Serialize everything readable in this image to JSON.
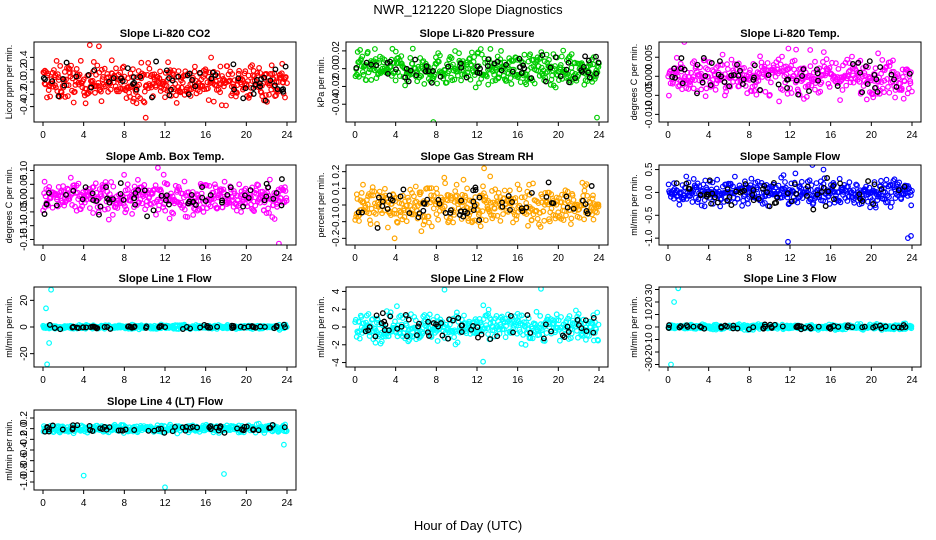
{
  "title": "NWR_121220  Slope Diagnostics",
  "xlabel": "Hour of Day (UTC)",
  "chart_data": [
    {
      "type": "scatter",
      "title": "Slope Li-820 CO2",
      "ylabel": "Licor ppm per min.",
      "xlim": [
        0,
        24
      ],
      "ylim": [
        -0.65,
        0.65
      ],
      "yticks": [
        "-0.4",
        "-0.2",
        "0.0",
        "0.2",
        "0.4"
      ],
      "yvals": [
        -0.4,
        -0.2,
        0,
        0.2,
        0.4
      ],
      "xticks": [
        "0",
        "4",
        "8",
        "12",
        "16",
        "20",
        "24"
      ],
      "color": "#ff0000",
      "series": [
        {
          "values_summary": "dense scatter",
          "spread": 0.3,
          "outliers": [
            [
              4.6,
              0.6
            ],
            [
              5.5,
              0.58
            ],
            [
              10.1,
              -0.58
            ]
          ]
        }
      ]
    },
    {
      "type": "scatter",
      "title": "Slope Li-820 Pressure",
      "ylabel": "kPa per min.",
      "xlim": [
        0,
        24
      ],
      "ylim": [
        -0.06,
        0.03
      ],
      "yticks": [
        "-0.04",
        "-0.02",
        "0.00",
        "0.02"
      ],
      "yvals": [
        -0.04,
        -0.02,
        0,
        0.02
      ],
      "xticks": [
        "0",
        "4",
        "8",
        "12",
        "16",
        "20",
        "24"
      ],
      "color": "#00cc00",
      "series": [
        {
          "spread": 0.018,
          "outliers": [
            [
              7.7,
              -0.06
            ],
            [
              23.8,
              -0.055
            ]
          ]
        }
      ]
    },
    {
      "type": "scatter",
      "title": "Slope Li-820 Temp.",
      "ylabel": "degrees C per min.",
      "xlim": [
        0,
        24
      ],
      "ylim": [
        -0.012,
        0.009
      ],
      "yticks": [
        "-0.010",
        "-0.005",
        "0.000",
        "0.005"
      ],
      "yvals": [
        -0.01,
        -0.005,
        0,
        0.005
      ],
      "xticks": [
        "0",
        "4",
        "8",
        "12",
        "16",
        "20",
        "24"
      ],
      "color": "#ff00ff",
      "series": [
        {
          "spread": 0.005,
          "outliers": [
            [
              1.6,
              0.009
            ],
            [
              12.6,
              0.007
            ]
          ]
        }
      ]
    },
    {
      "type": "scatter",
      "title": "Slope Amb. Box Temp.",
      "ylabel": "degrees C per min.",
      "xlim": [
        0,
        24
      ],
      "ylim": [
        -0.17,
        0.12
      ],
      "yticks": [
        "-0.15",
        "-0.10",
        "-0.05",
        "0.00",
        "0.05",
        "0.10"
      ],
      "yvals": [
        -0.15,
        -0.1,
        -0.05,
        0,
        0.05,
        0.1
      ],
      "xticks": [
        "0",
        "4",
        "8",
        "12",
        "16",
        "20",
        "24"
      ],
      "color": "#ff00ff",
      "series": [
        {
          "spread": 0.06,
          "outliers": [
            [
              23.2,
              -0.165
            ],
            [
              11.3,
              0.11
            ]
          ]
        }
      ]
    },
    {
      "type": "scatter",
      "title": "Slope Gas Stream RH",
      "ylabel": "percent per min.",
      "xlim": [
        0,
        24
      ],
      "ylim": [
        -0.24,
        0.24
      ],
      "yticks": [
        "-0.2",
        "-0.1",
        "0.0",
        "0.1",
        "0.2"
      ],
      "yvals": [
        -0.2,
        -0.1,
        0,
        0.1,
        0.2
      ],
      "xticks": [
        "0",
        "4",
        "8",
        "12",
        "16",
        "20",
        "24"
      ],
      "color": "#ffa500",
      "series": [
        {
          "spread": 0.12,
          "outliers": [
            [
              12.7,
              0.22
            ],
            [
              3.9,
              -0.2
            ]
          ]
        }
      ]
    },
    {
      "type": "scatter",
      "title": "Slope Sample Flow",
      "ylabel": "ml/min per min.",
      "xlim": [
        0,
        24
      ],
      "ylim": [
        -1.15,
        0.6
      ],
      "yticks": [
        "-1.0",
        "-0.5",
        "0.0",
        "0.5"
      ],
      "yvals": [
        -1,
        -0.5,
        0,
        0.5
      ],
      "xticks": [
        "0",
        "4",
        "8",
        "12",
        "16",
        "20",
        "24"
      ],
      "color": "#0000ff",
      "series": [
        {
          "spread": 0.28,
          "outliers": [
            [
              11.8,
              -1.08
            ],
            [
              23.6,
              -1.0
            ],
            [
              23.9,
              -0.95
            ],
            [
              15.3,
              0.5
            ],
            [
              14.2,
              0.6
            ]
          ]
        }
      ]
    },
    {
      "type": "scatter",
      "title": "Slope Line 1 Flow",
      "ylabel": "ml/min per min.",
      "xlim": [
        0,
        24
      ],
      "ylim": [
        -30,
        30
      ],
      "yticks": [
        "-20",
        "0",
        "20"
      ],
      "yvals": [
        -20,
        0,
        20
      ],
      "xticks": [
        "0",
        "4",
        "8",
        "12",
        "16",
        "20",
        "24"
      ],
      "color": "#00ffff",
      "series": [
        {
          "spread": 1.5,
          "outliers": [
            [
              0.4,
              -28
            ],
            [
              0.8,
              28
            ],
            [
              0.3,
              14
            ],
            [
              0.6,
              -12
            ]
          ]
        }
      ]
    },
    {
      "type": "scatter",
      "title": "Slope Line 2 Flow",
      "ylabel": "ml/min per min.",
      "xlim": [
        0,
        24
      ],
      "ylim": [
        -4.5,
        4.5
      ],
      "yticks": [
        "-4",
        "-2",
        "0",
        "2",
        "4"
      ],
      "yvals": [
        -4,
        -2,
        0,
        2,
        4
      ],
      "xticks": [
        "0",
        "4",
        "8",
        "12",
        "16",
        "20",
        "24"
      ],
      "color": "#00ffff",
      "series": [
        {
          "spread": 1.6,
          "outliers": [
            [
              8.8,
              4.2
            ],
            [
              18.3,
              4.3
            ],
            [
              12.6,
              -3.9
            ]
          ]
        }
      ]
    },
    {
      "type": "scatter",
      "title": "Slope Line 3 Flow",
      "ylabel": "ml/min per min.",
      "xlim": [
        0,
        24
      ],
      "ylim": [
        -32,
        32
      ],
      "yticks": [
        "-30",
        "-20",
        "-10",
        "0",
        "10",
        "20",
        "30"
      ],
      "yvals": [
        -30,
        -20,
        -10,
        0,
        10,
        20,
        30
      ],
      "xticks": [
        "0",
        "4",
        "8",
        "12",
        "16",
        "20",
        "24"
      ],
      "color": "#00ffff",
      "series": [
        {
          "spread": 2,
          "outliers": [
            [
              0.3,
              -30
            ],
            [
              1.0,
              31
            ],
            [
              0.6,
              20
            ]
          ]
        }
      ]
    },
    {
      "type": "scatter",
      "title": "Slope Line 4 (LT) Flow",
      "ylabel": "ml/min per min.",
      "xlim": [
        0,
        24
      ],
      "ylim": [
        -1.15,
        0.35
      ],
      "yticks": [
        "-1.0",
        "-0.8",
        "-0.6",
        "-0.4",
        "-0.2",
        "0.0",
        "0.2"
      ],
      "yvals": [
        -1,
        -0.8,
        -0.6,
        -0.4,
        -0.2,
        0,
        0.2
      ],
      "xticks": [
        "0",
        "4",
        "8",
        "12",
        "16",
        "20",
        "24"
      ],
      "color": "#00ffff",
      "series": [
        {
          "spread": 0.07,
          "outliers": [
            [
              4.0,
              -0.88
            ],
            [
              17.8,
              -0.85
            ],
            [
              12.0,
              -1.1
            ],
            [
              23.7,
              -0.3
            ]
          ]
        }
      ]
    }
  ]
}
